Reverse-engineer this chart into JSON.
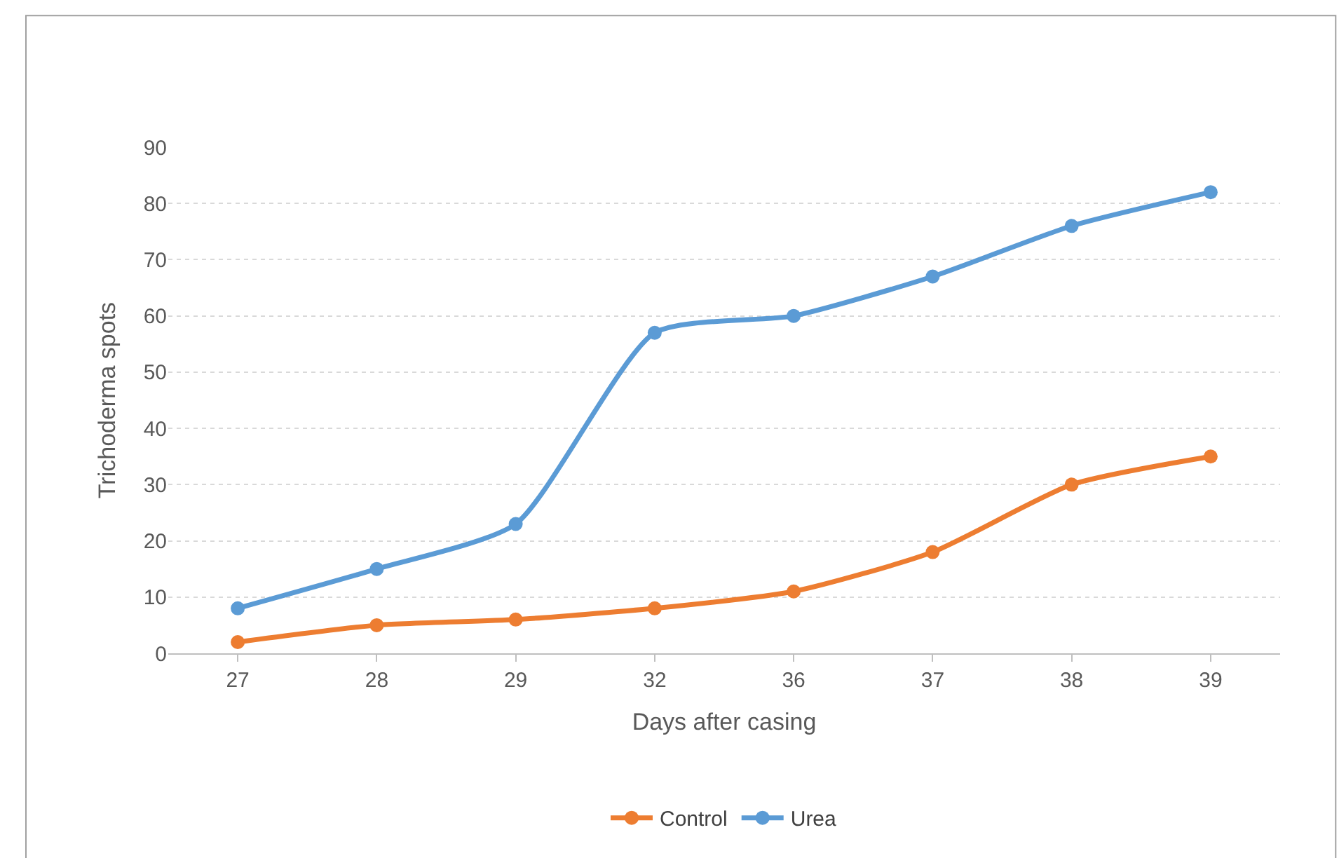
{
  "chart_data": {
    "type": "line",
    "xlabel": "Days after casing",
    "ylabel": "Trichoderma spots",
    "categories": [
      "27",
      "28",
      "29",
      "32",
      "36",
      "37",
      "38",
      "39"
    ],
    "series": [
      {
        "name": "Control",
        "color": "#ed7d31",
        "values": [
          2,
          5,
          6,
          8,
          11,
          18,
          30,
          35
        ]
      },
      {
        "name": "Urea",
        "color": "#5b9bd5",
        "values": [
          8,
          15,
          23,
          57,
          60,
          67,
          76,
          82
        ]
      }
    ],
    "ylim": [
      0,
      90
    ],
    "yticks": [
      0,
      10,
      20,
      30,
      40,
      50,
      60,
      70,
      80,
      90
    ],
    "grid": "y",
    "legend": "bottom",
    "marker": "circle",
    "line_style": "solid"
  }
}
